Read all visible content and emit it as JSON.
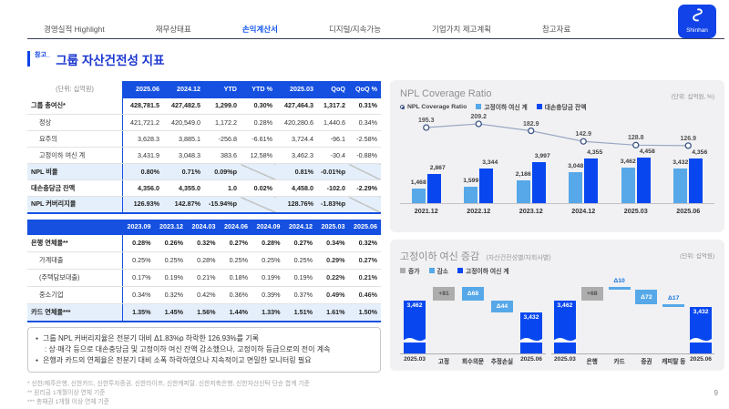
{
  "nav": {
    "tabs": [
      {
        "label": "경영실적 Highlight",
        "active": false
      },
      {
        "label": "재무상태표",
        "active": false
      },
      {
        "label": "손익계산서",
        "active": true
      },
      {
        "label": "디지털/지속가능",
        "active": false
      },
      {
        "label": "기업가치 제고계획",
        "active": false
      },
      {
        "label": "참고자료",
        "active": false
      }
    ]
  },
  "logo": {
    "brand": "Shinhan"
  },
  "title": {
    "prefix": "참고_",
    "text": "그룹 자산건전성 지표"
  },
  "table1": {
    "unit_label": "(단위: 십억원)",
    "columns": [
      "2025.06",
      "2024.12",
      "YTD",
      "YTD %",
      "2025.03",
      "QoQ",
      "QoQ %"
    ],
    "rows": [
      {
        "label": "그룹 총여신*",
        "bold": true,
        "hl": false,
        "indent": false,
        "values": [
          "428,781.5",
          "427,482.5",
          "1,299.0",
          "0.30%",
          "427,464.3",
          "1,317.2",
          "0.31%"
        ]
      },
      {
        "label": "정상",
        "bold": false,
        "hl": false,
        "indent": true,
        "values": [
          "421,721.2",
          "420,549.0",
          "1,172.2",
          "0.28%",
          "420,280.6",
          "1,440.6",
          "0.34%"
        ]
      },
      {
        "label": "요주의",
        "bold": false,
        "hl": false,
        "indent": true,
        "values": [
          "3,628.3",
          "3,885.1",
          "-256.8",
          "-6.61%",
          "3,724.4",
          "-96.1",
          "-2.58%"
        ]
      },
      {
        "label": "고정이하 여신 계",
        "bold": false,
        "hl": false,
        "indent": true,
        "values": [
          "3,431.9",
          "3,048.3",
          "383.6",
          "12.58%",
          "3,462.3",
          "-30.4",
          "-0.88%"
        ]
      },
      {
        "label": "NPL 비율",
        "bold": true,
        "hl": true,
        "indent": false,
        "values": [
          "0.80%",
          "0.71%",
          "0.09%p",
          null,
          "0.81%",
          "-0.01%p",
          null
        ]
      },
      {
        "label": "대손충당금 잔액",
        "bold": true,
        "hl": false,
        "indent": false,
        "values": [
          "4,356.0",
          "4,355.0",
          "1.0",
          "0.02%",
          "4,458.0",
          "-102.0",
          "-2.29%"
        ]
      },
      {
        "label": "NPL 커버리지율",
        "bold": true,
        "hl": true,
        "indent": false,
        "values": [
          "126.93%",
          "142.87%",
          "-15.94%p",
          null,
          "128.76%",
          "-1.83%p",
          null
        ]
      }
    ]
  },
  "table2": {
    "columns": [
      "2023.09",
      "2023.12",
      "2024.03",
      "2024.06",
      "2024.09",
      "2024.12",
      "2025.03",
      "2025.06"
    ],
    "rows": [
      {
        "label": "은행 연체율**",
        "bold": true,
        "hl": false,
        "indent": false,
        "values": [
          "0.28%",
          "0.26%",
          "0.32%",
          "0.27%",
          "0.28%",
          "0.27%",
          "0.34%",
          "0.32%"
        ]
      },
      {
        "label": "가계대출",
        "bold": false,
        "hl": false,
        "indent": true,
        "values": [
          "0.25%",
          "0.25%",
          "0.28%",
          "0.25%",
          "0.25%",
          "0.25%",
          "0.29%",
          "0.27%"
        ]
      },
      {
        "label": "(주택담보대출)",
        "bold": false,
        "hl": false,
        "indent": true,
        "values": [
          "0.17%",
          "0.19%",
          "0.21%",
          "0.18%",
          "0.19%",
          "0.19%",
          "0.22%",
          "0.21%"
        ]
      },
      {
        "label": "중소기업",
        "bold": false,
        "hl": false,
        "indent": true,
        "values": [
          "0.34%",
          "0.32%",
          "0.42%",
          "0.36%",
          "0.39%",
          "0.37%",
          "0.49%",
          "0.46%"
        ]
      },
      {
        "label": "카드 연체율***",
        "bold": true,
        "hl": true,
        "indent": false,
        "values": [
          "1.35%",
          "1.45%",
          "1.56%",
          "1.44%",
          "1.33%",
          "1.51%",
          "1.61%",
          "1.50%"
        ]
      }
    ]
  },
  "notes": {
    "bullets": [
      {
        "main": "그룹 NPL 커버리지율은 전분기 대비 Δ1.83%p 하락한 126.93%를 기록",
        "sub": ": 상·매각 등으로 대손충당금 및 고정이하 여신 잔액 감소했으나, 고정이하 등급으로의 전이 계속"
      },
      {
        "main": "은행과 카드의 연체율은 전분기 대비 소폭 하락하였으나 지속적이고 면밀한 모니터링 필요",
        "sub": null
      }
    ]
  },
  "footnotes": [
    "* 신한/제주은행, 신한카드, 신한투자증권, 신한라이프, 신한캐피탈, 신한저축은행, 신한자산신탁 단순 합계 기준",
    "** 원리금 1개월이상 연체 기준",
    "*** 총채권 1개월 이상 연체 기준"
  ],
  "page_number": "9",
  "chart_data": [
    {
      "type": "bar+line",
      "title": "NPL Coverage Ratio",
      "unit": "(단위: 십억원, %)",
      "legend_position": "top",
      "categories": [
        "2021.12",
        "2022.12",
        "2023.12",
        "2024.12",
        "2025.03",
        "2025.06"
      ],
      "series": [
        {
          "name": "NPL Coverage Ratio",
          "type": "line",
          "color": "#9AA8C4",
          "values": [
            195.3,
            209.2,
            182.9,
            142.9,
            128.8,
            126.9
          ]
        },
        {
          "name": "고정이하 여신 계",
          "type": "bar",
          "color": "#56A8E8",
          "values": [
            1468,
            1599,
            2186,
            3048,
            3462,
            3432
          ]
        },
        {
          "name": "대손충당금 잔액",
          "type": "bar",
          "color": "#0847F0",
          "values": [
            2867,
            3344,
            3997,
            4355,
            4458,
            4356
          ]
        }
      ]
    },
    {
      "type": "waterfall",
      "title": "고정이하 여신 증감",
      "subtitle": "(자산건전성별/자회사별)",
      "unit": "(단위: 십억원)",
      "legend": [
        {
          "name": "증가",
          "color": "#ADADAD"
        },
        {
          "name": "감소",
          "color": "#56A8E8"
        },
        {
          "name": "고정이하 여신 계",
          "color": "#0847F0"
        }
      ],
      "groups": [
        {
          "name": "자산건전성별",
          "items": [
            {
              "label": "2025.03",
              "kind": "total",
              "v": 3462,
              "display": "3,462"
            },
            {
              "label": "고정",
              "kind": "increase",
              "v": 81,
              "display": "+81"
            },
            {
              "label": "회수의문",
              "kind": "decrease",
              "v": -68,
              "display": "Δ68"
            },
            {
              "label": "추정손실",
              "kind": "decrease",
              "v": -44,
              "display": "Δ44"
            },
            {
              "label": "2025.06",
              "kind": "total",
              "v": 3432,
              "display": "3,432"
            }
          ]
        },
        {
          "name": "자회사별",
          "items": [
            {
              "label": "2025.03",
              "kind": "total",
              "v": 3462,
              "display": "3,462"
            },
            {
              "label": "은행",
              "kind": "increase",
              "v": 68,
              "display": "+68"
            },
            {
              "label": "카드",
              "kind": "decrease-small",
              "v": -10,
              "display": "Δ10"
            },
            {
              "label": "증권",
              "kind": "decrease",
              "v": -72,
              "display": "Δ72"
            },
            {
              "label": "캐피탈 등",
              "kind": "decrease-small",
              "v": -17,
              "display": "Δ17"
            },
            {
              "label": "2025.06",
              "kind": "total",
              "v": 3432,
              "display": "3,432"
            }
          ]
        }
      ]
    }
  ]
}
